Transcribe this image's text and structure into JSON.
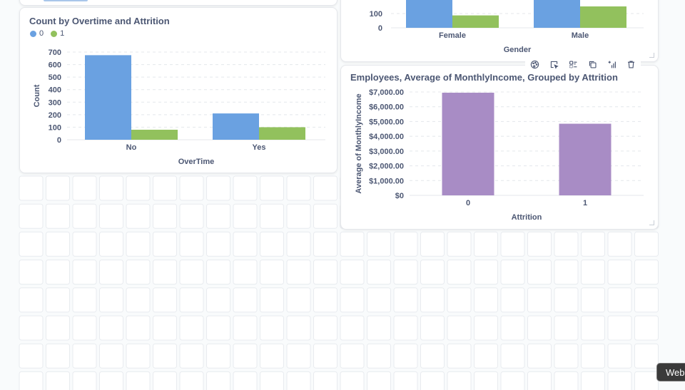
{
  "dashboard": {
    "card_gender": {
      "xlabel": "Gender",
      "categories": [
        "Female",
        "Male"
      ],
      "visible_ticks": [
        "100",
        "0"
      ]
    },
    "card_overtime": {
      "title": "Count by Overtime and Attrition",
      "legend": [
        "0",
        "1"
      ]
    },
    "card_income": {
      "title": "Employees, Average of MonthlyIncome, Grouped by Attrition"
    },
    "toolbar": {
      "icons": [
        "palette-icon",
        "click-behavior-icon",
        "replace-icon",
        "duplicate-icon",
        "add-series-icon",
        "trash-icon"
      ]
    },
    "tooltip_chip": "Web",
    "colors": {
      "blue": "#6aa1e1",
      "green": "#92c15d",
      "purple": "#a88cc5"
    }
  },
  "chart_data": [
    {
      "type": "bar",
      "title": "",
      "xlabel": "Gender",
      "ylabel": "",
      "categories": [
        "Female",
        "Male"
      ],
      "series": [
        {
          "name": "0",
          "values": [
            501,
            732
          ]
        },
        {
          "name": "1",
          "values": [
            87,
            150
          ]
        }
      ],
      "ytick_labels": [
        "100",
        "0"
      ],
      "grid": true
    },
    {
      "type": "bar",
      "title": "Count by Overtime and Attrition",
      "xlabel": "OverTime",
      "ylabel": "Count",
      "categories": [
        "No",
        "Yes"
      ],
      "series": [
        {
          "name": "0",
          "values": [
            675,
            210
          ]
        },
        {
          "name": "1",
          "values": [
            80,
            100
          ]
        }
      ],
      "ylim": [
        0,
        700
      ],
      "yticks": [
        0,
        100,
        200,
        300,
        400,
        500,
        600,
        700
      ],
      "legend": "top-left",
      "grid": true
    },
    {
      "type": "bar",
      "title": "Employees, Average of MonthlyIncome, Grouped by Attrition",
      "xlabel": "Attrition",
      "ylabel": "Average of MonthlyIncome",
      "categories": [
        "0",
        "1"
      ],
      "series": [
        {
          "values": [
            6950,
            4850
          ]
        }
      ],
      "ylim": [
        0,
        7000
      ],
      "yticks": [
        0,
        1000,
        2000,
        3000,
        4000,
        5000,
        6000,
        7000
      ],
      "ytick_labels": [
        "$0",
        "$1,000.00",
        "$2,000.00",
        "$3,000.00",
        "$4,000.00",
        "$5,000.00",
        "$6,000.00",
        "$7,000.00"
      ],
      "grid": true
    }
  ]
}
